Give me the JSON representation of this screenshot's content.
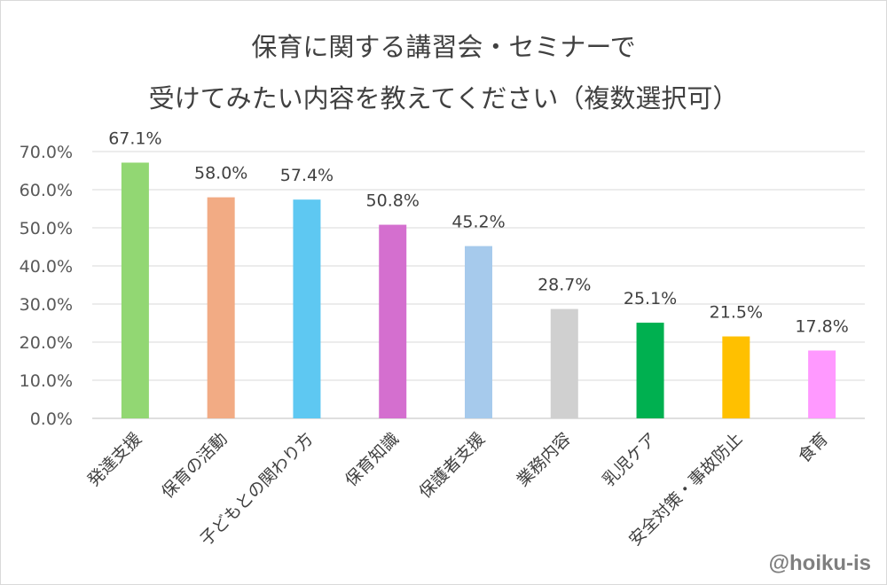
{
  "chart_data": {
    "type": "bar",
    "title_line1": "保育に関する講習会・セミナーで",
    "title_line2": "受けてみたい内容を教えてください（複数選択可）",
    "categories": [
      "発達支援",
      "保育の活動",
      "子どもとの関わり方",
      "保育知識",
      "保護者支援",
      "業務内容",
      "乳児ケア",
      "安全対策・事故防止",
      "食育"
    ],
    "values": [
      67.1,
      58.0,
      57.4,
      50.8,
      45.2,
      28.7,
      25.1,
      21.5,
      17.8
    ],
    "data_labels": [
      "67.1%",
      "58.0%",
      "57.4%",
      "50.8%",
      "45.2%",
      "28.7%",
      "25.1%",
      "21.5%",
      "17.8%"
    ],
    "colors": [
      "#92d773",
      "#f2ab84",
      "#5ec8f2",
      "#d46fcf",
      "#a6caec",
      "#d0d0d0",
      "#00b050",
      "#ffc000",
      "#ff99ff"
    ],
    "ylim": [
      0,
      70
    ],
    "yticks": [
      "0.0%",
      "10.0%",
      "20.0%",
      "30.0%",
      "40.0%",
      "50.0%",
      "60.0%",
      "70.0%"
    ],
    "grid": true,
    "xlabel": "",
    "ylabel": ""
  },
  "watermark": "@hoiku-is"
}
